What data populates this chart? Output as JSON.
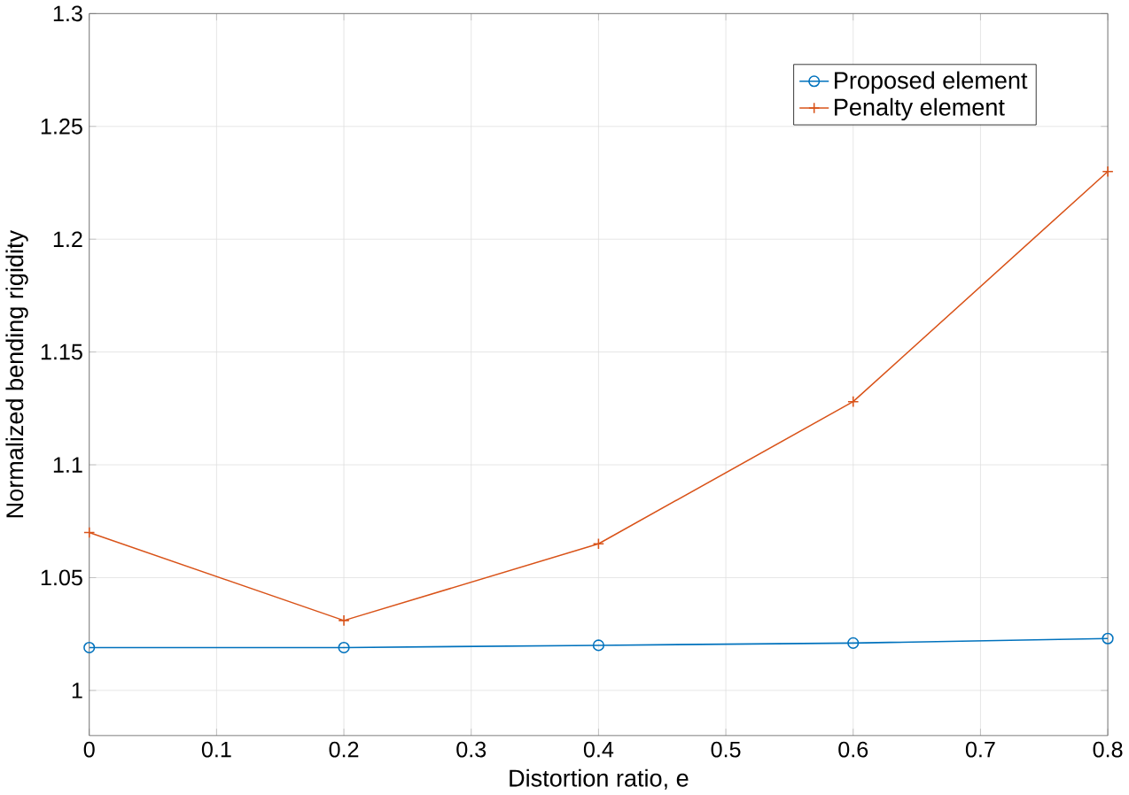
{
  "chart_data": {
    "type": "line",
    "xlabel": "Distortion ratio, e",
    "ylabel": "Normalized bending rigidity",
    "x": [
      0,
      0.2,
      0.4,
      0.6,
      0.8
    ],
    "series": [
      {
        "name": "Proposed element",
        "color": "#0072bd",
        "marker": "circle",
        "values": [
          1.019,
          1.019,
          1.02,
          1.021,
          1.023
        ]
      },
      {
        "name": "Penalty element",
        "color": "#d95319",
        "marker": "cross",
        "values": [
          1.07,
          1.031,
          1.065,
          1.128,
          1.23
        ]
      }
    ],
    "xlim": [
      0,
      0.8
    ],
    "ylim": [
      0.98,
      1.3
    ],
    "xticks": [
      0,
      0.1,
      0.2,
      0.3,
      0.4,
      0.5,
      0.6,
      0.7,
      0.8
    ],
    "yticks": [
      1,
      1.05,
      1.1,
      1.15,
      1.2,
      1.25,
      1.3
    ],
    "grid": true,
    "legend": "top right",
    "line_style": "solid"
  }
}
